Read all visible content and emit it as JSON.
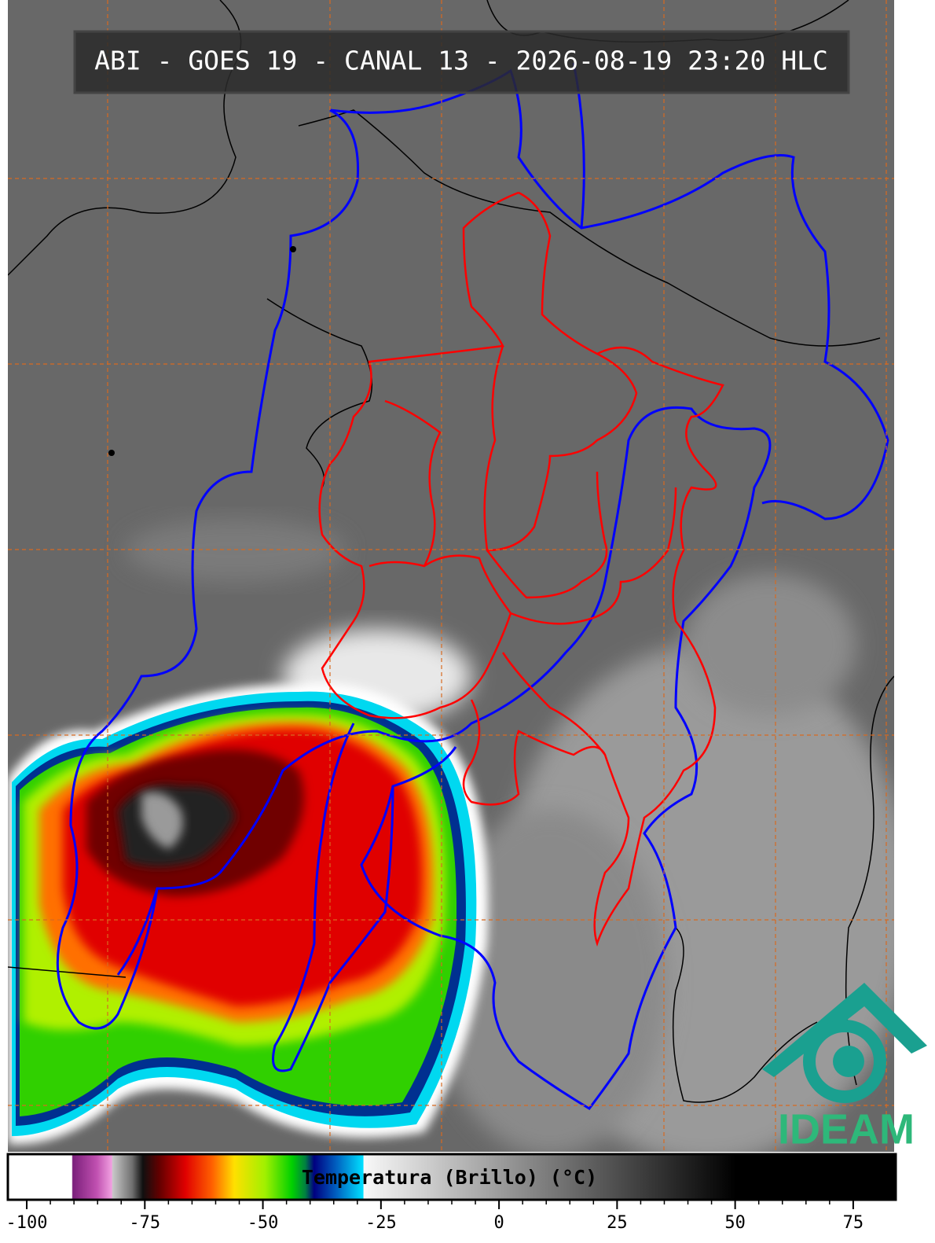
{
  "header": {
    "title": "ABI - GOES 19 - CANAL 13 - 2026-08-19 23:20 HLC"
  },
  "colorbar": {
    "label": "Temperatura (Brillo) (°C)",
    "lim": [
      -104,
      84
    ],
    "ticks": [
      -100,
      -75,
      -50,
      -25,
      0,
      25,
      50,
      75
    ]
  },
  "logo": {
    "text": "IDEAM"
  }
}
